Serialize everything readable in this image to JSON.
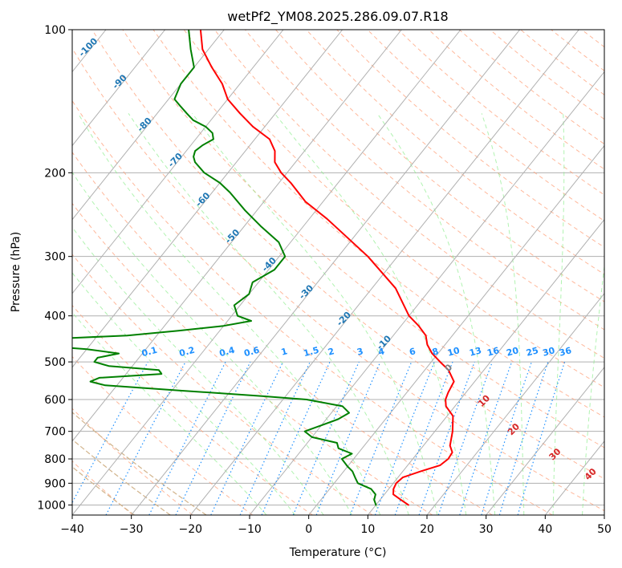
{
  "chart_data": {
    "type": "line",
    "subtype": "skew-t log-p diagram",
    "title": "wetPf2_YM08.2025.286.09.07.R18",
    "xlabel": "Temperature (°C)",
    "ylabel": "Pressure (hPa)",
    "xlim": [
      -40,
      50
    ],
    "ylim": [
      1050,
      100
    ],
    "y_scale": "log",
    "x_ticks": [
      -40,
      -30,
      -20,
      -10,
      0,
      10,
      20,
      30,
      40,
      50
    ],
    "x_tick_labels": [
      "−40",
      "−30",
      "−20",
      "−10",
      "0",
      "10",
      "20",
      "30",
      "40",
      "50"
    ],
    "y_ticks": [
      100,
      200,
      300,
      400,
      500,
      600,
      700,
      800,
      900,
      1000
    ],
    "y_tick_labels": [
      "100",
      "200",
      "300",
      "400",
      "500",
      "600",
      "700",
      "800",
      "900",
      "1000"
    ],
    "grid": true,
    "series": [
      {
        "role": "temperature",
        "color": "#ff0000",
        "points": [
          [
            1000,
            15.5
          ],
          [
            975,
            13.5
          ],
          [
            950,
            11.5
          ],
          [
            925,
            10.8
          ],
          [
            900,
            10.5
          ],
          [
            875,
            10.8
          ],
          [
            850,
            13
          ],
          [
            825,
            15.5
          ],
          [
            800,
            16
          ],
          [
            775,
            15.8
          ],
          [
            750,
            14.5
          ],
          [
            700,
            13
          ],
          [
            650,
            11
          ],
          [
            620,
            8.5
          ],
          [
            600,
            7.5
          ],
          [
            580,
            7
          ],
          [
            550,
            6.5
          ],
          [
            520,
            4
          ],
          [
            500,
            1.5
          ],
          [
            480,
            -1
          ],
          [
            460,
            -3
          ],
          [
            440,
            -4.5
          ],
          [
            420,
            -7
          ],
          [
            400,
            -10
          ],
          [
            350,
            -16
          ],
          [
            300,
            -25
          ],
          [
            250,
            -37
          ],
          [
            230,
            -43
          ],
          [
            210,
            -48
          ],
          [
            200,
            -51
          ],
          [
            190,
            -53.5
          ],
          [
            180,
            -55
          ],
          [
            170,
            -57.5
          ],
          [
            160,
            -62
          ],
          [
            150,
            -66
          ],
          [
            140,
            -70
          ],
          [
            130,
            -73
          ],
          [
            120,
            -77
          ],
          [
            110,
            -81
          ],
          [
            100,
            -84
          ]
        ]
      },
      {
        "role": "dewpoint",
        "color": "#008000",
        "points": [
          [
            1000,
            10
          ],
          [
            975,
            9
          ],
          [
            950,
            8.5
          ],
          [
            925,
            7
          ],
          [
            900,
            4
          ],
          [
            880,
            3
          ],
          [
            860,
            2
          ],
          [
            850,
            1.5
          ],
          [
            830,
            0
          ],
          [
            800,
            -2
          ],
          [
            780,
            -1
          ],
          [
            760,
            -4
          ],
          [
            740,
            -5
          ],
          [
            720,
            -10
          ],
          [
            700,
            -12
          ],
          [
            680,
            -10
          ],
          [
            660,
            -8
          ],
          [
            640,
            -7
          ],
          [
            620,
            -9
          ],
          [
            600,
            -16
          ],
          [
            590,
            -24
          ],
          [
            575,
            -38
          ],
          [
            560,
            -52
          ],
          [
            550,
            -55
          ],
          [
            540,
            -54
          ],
          [
            530,
            -44
          ],
          [
            520,
            -45
          ],
          [
            510,
            -54
          ],
          [
            500,
            -57
          ],
          [
            490,
            -57
          ],
          [
            480,
            -54
          ],
          [
            470,
            -60
          ],
          [
            460,
            -71
          ],
          [
            450,
            -72
          ],
          [
            440,
            -55
          ],
          [
            430,
            -47
          ],
          [
            420,
            -40
          ],
          [
            410,
            -36
          ],
          [
            400,
            -39
          ],
          [
            380,
            -41
          ],
          [
            360,
            -40
          ],
          [
            340,
            -41
          ],
          [
            320,
            -39
          ],
          [
            300,
            -39
          ],
          [
            280,
            -42
          ],
          [
            260,
            -47
          ],
          [
            240,
            -52
          ],
          [
            220,
            -57
          ],
          [
            210,
            -60
          ],
          [
            200,
            -64
          ],
          [
            190,
            -67
          ],
          [
            185,
            -68
          ],
          [
            180,
            -68.5
          ],
          [
            175,
            -68
          ],
          [
            170,
            -67
          ],
          [
            165,
            -68
          ],
          [
            160,
            -70
          ],
          [
            155,
            -73
          ],
          [
            150,
            -75
          ],
          [
            145,
            -77
          ],
          [
            140,
            -79
          ],
          [
            130,
            -80
          ],
          [
            120,
            -80
          ],
          [
            110,
            -83
          ],
          [
            100,
            -86
          ]
        ]
      }
    ],
    "isotherm_labels": {
      "color": "#1f77b4",
      "pressure_hpa": 450,
      "items": [
        {
          "t": -100,
          "p": 110,
          "text": "-100"
        },
        {
          "t": -90,
          "p": 130,
          "text": "-90"
        },
        {
          "t": -80,
          "p": 160,
          "text": "-80"
        },
        {
          "t": -70,
          "p": 190,
          "text": "-70"
        },
        {
          "t": -60,
          "p": 230,
          "text": "-60"
        },
        {
          "t": -50,
          "p": 275,
          "text": "-50"
        },
        {
          "t": -40,
          "p": 315,
          "text": "-40"
        },
        {
          "t": -30,
          "p": 360,
          "text": "-30"
        },
        {
          "t": -20,
          "p": 410,
          "text": "-20"
        },
        {
          "t": -10,
          "p": 460,
          "text": "-10"
        }
      ]
    },
    "mixing_ratio_labels": {
      "color": "#1e90ff",
      "pressure_hpa": 490,
      "values": [
        "0.1",
        "0.2",
        "0.4",
        "0.6",
        "1",
        "1.5",
        "2",
        "3",
        "4",
        "6",
        "8",
        "10",
        "13",
        "16",
        "20",
        "25",
        "30",
        "36"
      ]
    },
    "moist_adiabat_labels": {
      "color": "#d62728",
      "items": [
        {
          "text": "0",
          "color": "#808080"
        },
        {
          "text": "10",
          "color": "#d62728"
        },
        {
          "text": "20",
          "color": "#d62728"
        },
        {
          "text": "30",
          "color": "#d62728"
        },
        {
          "text": "40",
          "color": "#d62728"
        }
      ]
    },
    "colors": {
      "isotherm": "#b0b0b0",
      "dry_adiabat": "#ffa07a",
      "moist_adiabat": "#90ee90",
      "mixing_ratio": "#1e90ff",
      "curved_guide": "#d2b48c"
    }
  }
}
